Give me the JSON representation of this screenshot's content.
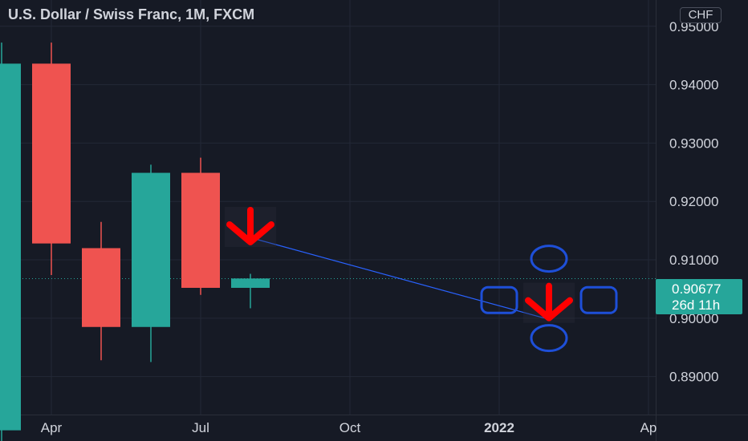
{
  "header": {
    "title": "U.S. Dollar / Swiss Franc, 1M, FXCM"
  },
  "currency_badge": "CHF",
  "price_tag": {
    "price": "0.90677",
    "countdown": "26d 11h"
  },
  "colors": {
    "background": "#161a25",
    "grid": "#232836",
    "up": "#26a69a",
    "down": "#ef5350",
    "text": "#d1d4dc",
    "drawing_line": "#2962ff",
    "annotation_arrow": "#ff0000",
    "annotation_shape": "#1e4fd8"
  },
  "chart_data": {
    "type": "candlestick",
    "symbol": "U.S. Dollar / Swiss Franc",
    "interval": "1M",
    "source": "FXCM",
    "x_ticks": [
      {
        "label": "Apr",
        "date": "2021-04"
      },
      {
        "label": "Jul",
        "date": "2021-07"
      },
      {
        "label": "Oct",
        "date": "2021-10"
      },
      {
        "label": "2022",
        "date": "2022-01",
        "bold": true
      },
      {
        "label": "Ap",
        "date": "2022-04"
      }
    ],
    "y_ticks": [
      "0.89000",
      "0.90000",
      "0.91000",
      "0.92000",
      "0.93000",
      "0.94000",
      "0.95000"
    ],
    "ylim": [
      0.8835,
      0.9545
    ],
    "candles": [
      {
        "date": "2021-03",
        "open": 0.8808,
        "high": 0.9472,
        "low": 0.8781,
        "close": 0.9436
      },
      {
        "date": "2021-04",
        "open": 0.9436,
        "high": 0.9472,
        "low": 0.9074,
        "close": 0.9128
      },
      {
        "date": "2021-05",
        "open": 0.912,
        "high": 0.9165,
        "low": 0.8928,
        "close": 0.8985
      },
      {
        "date": "2021-06",
        "open": 0.8985,
        "high": 0.9263,
        "low": 0.8925,
        "close": 0.9249
      },
      {
        "date": "2021-07",
        "open": 0.9249,
        "high": 0.9275,
        "low": 0.904,
        "close": 0.9052
      },
      {
        "date": "2021-08",
        "open": 0.9052,
        "high": 0.9076,
        "low": 0.9017,
        "close": 0.9068
      }
    ],
    "last_price": 0.90677,
    "trendline": {
      "from": {
        "date": "2021-08",
        "price": 0.9138
      },
      "to": {
        "date": "2022-02",
        "price": 0.8998
      }
    },
    "annotations": [
      {
        "type": "arrow-down",
        "date": "2021-08",
        "price": 0.9155
      },
      {
        "type": "arrow-down",
        "date": "2022-02",
        "price": 0.9025
      },
      {
        "type": "ellipse",
        "date": "2022-02",
        "price": 0.9102
      },
      {
        "type": "ellipse",
        "date": "2022-02",
        "price": 0.8966
      },
      {
        "type": "rounded-rect",
        "date": "2022-01",
        "price": 0.9031
      },
      {
        "type": "rounded-rect",
        "date": "2022-03",
        "price": 0.9031
      }
    ]
  }
}
